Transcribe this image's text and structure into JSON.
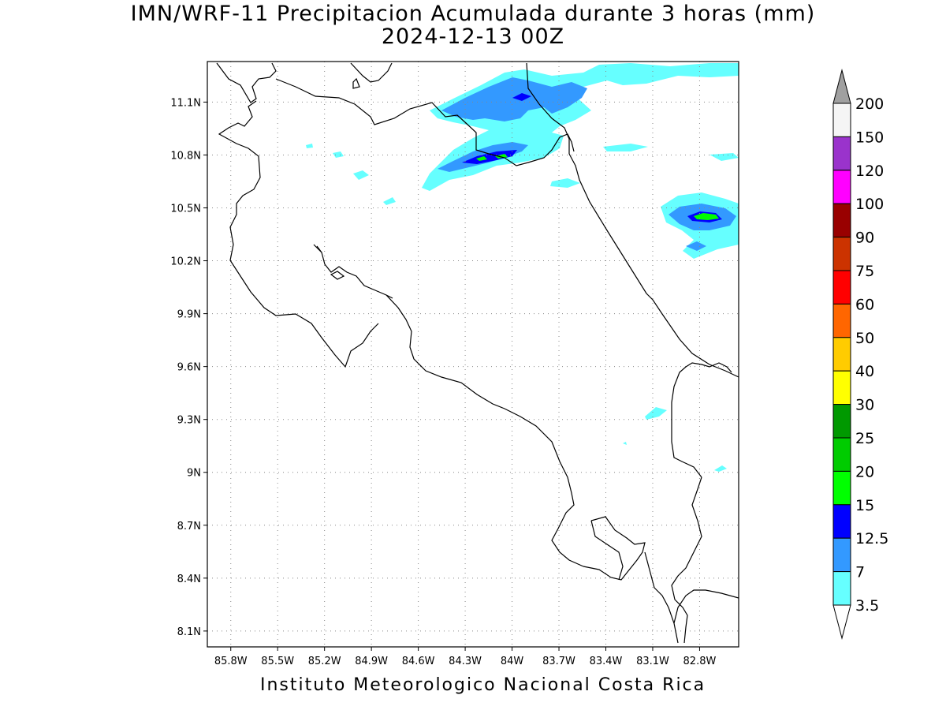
{
  "title_line1": "IMN/WRF-11 Precipitacion Acumulada durante 3 horas (mm)",
  "title_line2": "2024-12-13 00Z",
  "footer": "Instituto Meteorologico Nacional Costa Rica",
  "map": {
    "lon_range": [
      -85.95,
      -82.55
    ],
    "lat_range": [
      8.01,
      11.33
    ],
    "y_ticks": [
      "11.1N",
      "10.8N",
      "10.5N",
      "10.2N",
      "9.9N",
      "9.6N",
      "9.3N",
      "9N",
      "8.7N",
      "8.4N",
      "8.1N"
    ],
    "x_ticks": [
      "85.8W",
      "85.5W",
      "85.2W",
      "84.9W",
      "84.6W",
      "84.3W",
      "84W",
      "83.7W",
      "83.4W",
      "83.1W",
      "82.8W"
    ],
    "grid": "dotted"
  },
  "colorbar": {
    "labels": [
      "200",
      "150",
      "120",
      "100",
      "90",
      "75",
      "60",
      "50",
      "40",
      "30",
      "25",
      "20",
      "15",
      "12.5",
      "7",
      "3.5"
    ],
    "colors": [
      "#a0a0a0",
      "#f5f5f5",
      "#9a33cc",
      "#ff00ff",
      "#990000",
      "#cc3300",
      "#ff0000",
      "#ff6600",
      "#ffcc00",
      "#ffff00",
      "#009900",
      "#00cc00",
      "#00ff00",
      "#0000ff",
      "#3399ff",
      "#66ffff",
      "#ffffff"
    ]
  },
  "precip_colors": {
    "c3_5": "#66ffff",
    "c7": "#3399ff",
    "c12_5": "#0000ff",
    "c15": "#00ff00"
  }
}
